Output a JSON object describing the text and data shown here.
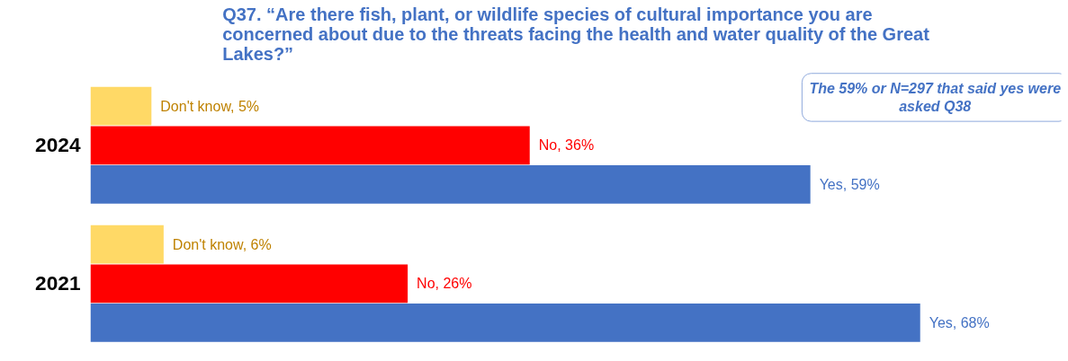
{
  "chart_data": {
    "type": "bar",
    "orientation": "horizontal",
    "title": "Q37. “Are there fish, plant, or wildlife species of cultural importance you are concerned about due to the threats facing the health and water quality of the Great Lakes?”",
    "categories": [
      "2024",
      "2021"
    ],
    "series": [
      {
        "color": "#ffd966",
        "values": [
          5,
          6
        ],
        "value_labels": [
          "Don't know, 5%",
          "Don't know, 6%"
        ]
      },
      {
        "color": "#ff0000",
        "values": [
          36,
          26
        ],
        "value_labels": [
          "No, 36%",
          "No, 26%"
        ]
      },
      {
        "color": "#4472c4",
        "values": [
          59,
          68
        ],
        "value_labels": [
          "Yes, 59%",
          "Yes, 68%"
        ]
      }
    ],
    "annotations": [
      "The 59% or N=297 that said yes were asked Q38"
    ],
    "grid": false
  }
}
